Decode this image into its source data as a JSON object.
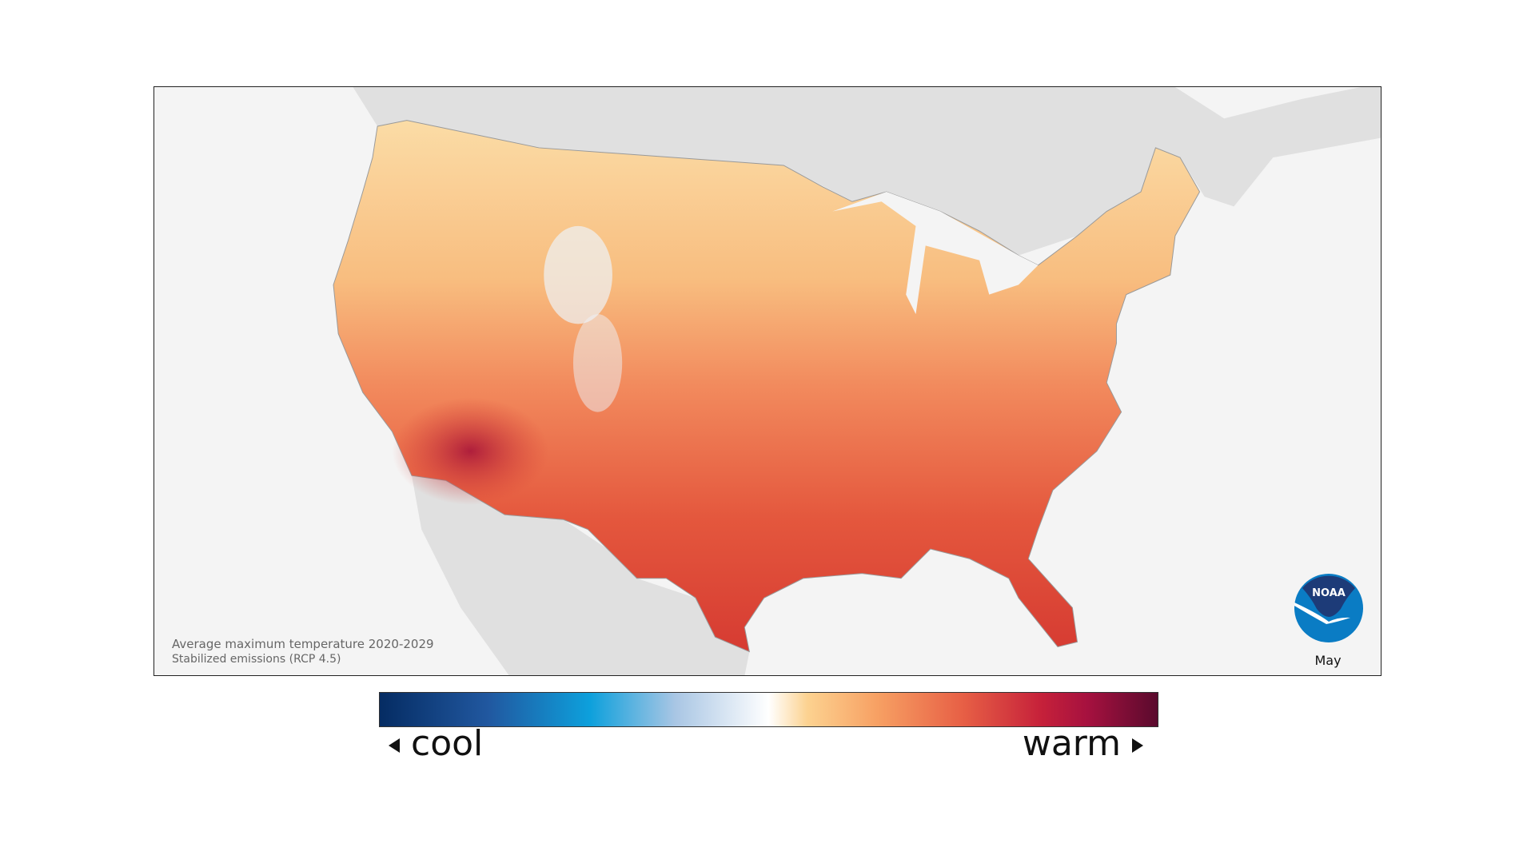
{
  "map": {
    "caption_line1": "Average maximum temperature 2020-2029",
    "caption_line2": "Stabilized emissions (RCP 4.5)",
    "month": "May",
    "logo_text": "NOAA"
  },
  "legend": {
    "low_label": "cool",
    "high_label": "warm",
    "colors": [
      "#052c63",
      "#2158a0",
      "#0da0dc",
      "#a9c6e4",
      "#ffffff",
      "#fcd290",
      "#f7a063",
      "#e75f45",
      "#c6213a",
      "#a6113f",
      "#5a0a2d"
    ]
  }
}
